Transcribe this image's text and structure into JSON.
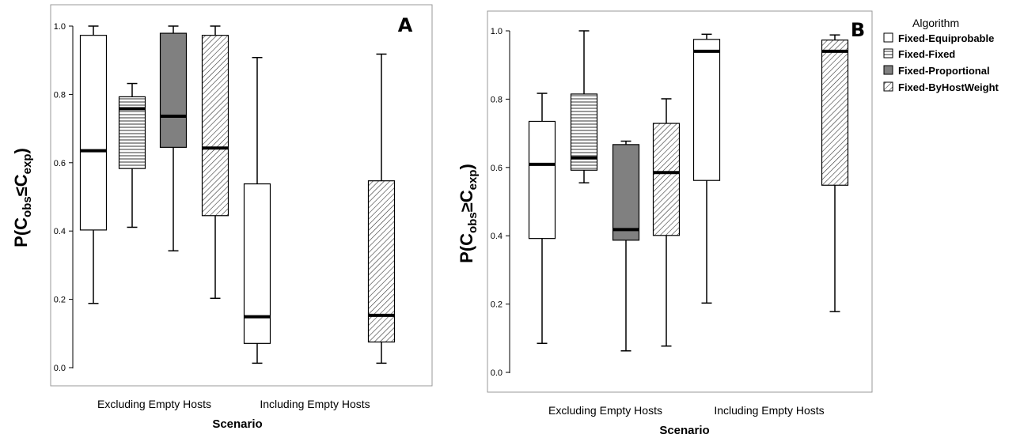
{
  "legend": {
    "title": "Algorithm",
    "items": [
      "Fixed-Equiprobable",
      "Fixed-Fixed",
      "Fixed-Proportional",
      "Fixed-ByHostWeight"
    ]
  },
  "chart_data": [
    {
      "type": "box",
      "panel_label": "A",
      "xlabel": "Scenario",
      "ylabel_parts": {
        "base": "P(C",
        "sub1": "obs",
        "op": "≤",
        "mid": "C",
        "sub2": "exp",
        "close": ")"
      },
      "ylim": [
        0,
        1
      ],
      "yticks": [
        "0.0",
        "0.2",
        "0.4",
        "0.6",
        "0.8",
        "1.0"
      ],
      "categories": [
        "Excluding Empty Hosts",
        "Including Empty Hosts"
      ],
      "series": [
        {
          "name": "Fixed-Equiprobable",
          "boxes": [
            {
              "category": "Excluding Empty Hosts",
              "min": 0.188,
              "q1": 0.403,
              "median": 0.635,
              "q3": 0.973,
              "max": 1.0
            },
            {
              "category": "Including Empty Hosts",
              "min": 0.013,
              "q1": 0.071,
              "median": 0.149,
              "q3": 0.538,
              "max": 0.908
            }
          ]
        },
        {
          "name": "Fixed-Fixed",
          "boxes": [
            {
              "category": "Excluding Empty Hosts",
              "min": 0.411,
              "q1": 0.583,
              "median": 0.758,
              "q3": 0.793,
              "max": 0.832
            }
          ]
        },
        {
          "name": "Fixed-Proportional",
          "boxes": [
            {
              "category": "Excluding Empty Hosts",
              "min": 0.342,
              "q1": 0.645,
              "median": 0.736,
              "q3": 0.979,
              "max": 1.0
            }
          ]
        },
        {
          "name": "Fixed-ByHostWeight",
          "boxes": [
            {
              "category": "Excluding Empty Hosts",
              "min": 0.203,
              "q1": 0.445,
              "median": 0.643,
              "q3": 0.973,
              "max": 1.0
            },
            {
              "category": "Including Empty Hosts",
              "min": 0.013,
              "q1": 0.075,
              "median": 0.153,
              "q3": 0.547,
              "max": 0.918
            }
          ]
        }
      ]
    },
    {
      "type": "box",
      "panel_label": "B",
      "xlabel": "Scenario",
      "ylabel_parts": {
        "base": "P(C",
        "sub1": "obs",
        "op": "≥",
        "mid": "C",
        "sub2": "exp",
        "close": ")"
      },
      "ylim": [
        0,
        1
      ],
      "yticks": [
        "0.0",
        "0.2",
        "0.4",
        "0.6",
        "0.8",
        "1.0"
      ],
      "categories": [
        "Excluding Empty Hosts",
        "Including Empty Hosts"
      ],
      "series": [
        {
          "name": "Fixed-Equiprobable",
          "boxes": [
            {
              "category": "Excluding Empty Hosts",
              "min": 0.085,
              "q1": 0.392,
              "median": 0.609,
              "q3": 0.735,
              "max": 0.817
            },
            {
              "category": "Including Empty Hosts",
              "min": 0.203,
              "q1": 0.562,
              "median": 0.94,
              "q3": 0.975,
              "max": 0.99
            }
          ]
        },
        {
          "name": "Fixed-Fixed",
          "boxes": [
            {
              "category": "Excluding Empty Hosts",
              "min": 0.555,
              "q1": 0.592,
              "median": 0.628,
              "q3": 0.815,
              "max": 1.0
            }
          ]
        },
        {
          "name": "Fixed-Proportional",
          "boxes": [
            {
              "category": "Excluding Empty Hosts",
              "min": 0.063,
              "q1": 0.387,
              "median": 0.418,
              "q3": 0.667,
              "max": 0.677
            }
          ]
        },
        {
          "name": "Fixed-ByHostWeight",
          "boxes": [
            {
              "category": "Excluding Empty Hosts",
              "min": 0.077,
              "q1": 0.401,
              "median": 0.585,
              "q3": 0.729,
              "max": 0.801
            },
            {
              "category": "Including Empty Hosts",
              "min": 0.178,
              "q1": 0.548,
              "median": 0.94,
              "q3": 0.973,
              "max": 0.988
            }
          ]
        }
      ]
    }
  ]
}
